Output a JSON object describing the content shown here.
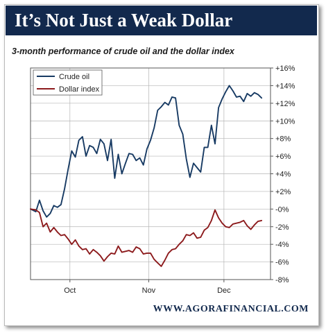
{
  "header": {
    "title": "It’s Not Just a Weak Dollar"
  },
  "subtitle": "3-month performance of crude oil and the dollar index",
  "footer": "WWW.AGORAFINANCIAL.COM",
  "colors": {
    "title_bg": "#12294d",
    "crude": "#173a63",
    "dollar": "#8c1a1c"
  },
  "chart_data": {
    "type": "line",
    "ylim": [
      -8,
      16
    ],
    "yticks": [
      16,
      14,
      12,
      10,
      8,
      6,
      4,
      2,
      0,
      -2,
      -4,
      -6,
      -8
    ],
    "ytick_labels": [
      "+16%",
      "+14%",
      "+12%",
      "+10%",
      "+8%",
      "+6%",
      "+4%",
      "+2%",
      "-0%",
      "-2%",
      "-4%",
      "-6%",
      "-8%"
    ],
    "xlim": [
      0,
      67
    ],
    "xticks": [
      {
        "x": 11,
        "label": "Oct"
      },
      {
        "x": 33,
        "label": "Nov"
      },
      {
        "x": 54,
        "label": "Dec"
      }
    ],
    "grid": true,
    "legend": "top-left",
    "series": [
      {
        "name": "Crude oil",
        "color": "#173a63",
        "values": [
          [
            0,
            0.0
          ],
          [
            1.5,
            -0.3
          ],
          [
            2.5,
            1.0
          ],
          [
            3.5,
            -0.2
          ],
          [
            4.5,
            -0.9
          ],
          [
            5.5,
            -0.5
          ],
          [
            6.5,
            0.4
          ],
          [
            7.5,
            0.2
          ],
          [
            8.5,
            0.5
          ],
          [
            9.5,
            2.3
          ],
          [
            10.5,
            4.5
          ],
          [
            11.5,
            6.6
          ],
          [
            12.5,
            5.9
          ],
          [
            13.5,
            7.8
          ],
          [
            14.5,
            8.2
          ],
          [
            15.5,
            6.0
          ],
          [
            16.5,
            7.2
          ],
          [
            17.5,
            7.0
          ],
          [
            18.5,
            6.3
          ],
          [
            19.5,
            7.9
          ],
          [
            20.5,
            7.4
          ],
          [
            21.5,
            5.5
          ],
          [
            22.5,
            7.9
          ],
          [
            23.5,
            3.5
          ],
          [
            24.5,
            6.2
          ],
          [
            25.5,
            4.0
          ],
          [
            26.5,
            5.2
          ],
          [
            27.5,
            6.3
          ],
          [
            28.5,
            6.2
          ],
          [
            29.5,
            5.5
          ],
          [
            30.5,
            5.8
          ],
          [
            31.5,
            5.0
          ],
          [
            32.5,
            6.8
          ],
          [
            33.5,
            7.8
          ],
          [
            34.5,
            9.2
          ],
          [
            35.5,
            11.2
          ],
          [
            36.5,
            11.6
          ],
          [
            37.5,
            12.1
          ],
          [
            38.5,
            11.8
          ],
          [
            39.5,
            12.7
          ],
          [
            40.5,
            12.6
          ],
          [
            41.5,
            9.5
          ],
          [
            42.5,
            8.5
          ],
          [
            43.5,
            5.7
          ],
          [
            44.5,
            3.6
          ],
          [
            45.5,
            5.2
          ],
          [
            46.5,
            4.7
          ],
          [
            47.5,
            4.2
          ],
          [
            48.5,
            7.0
          ],
          [
            49.5,
            7.0
          ],
          [
            50.5,
            9.5
          ],
          [
            51.5,
            7.4
          ],
          [
            52.5,
            11.5
          ],
          [
            53.5,
            12.5
          ],
          [
            54.5,
            13.3
          ],
          [
            55.5,
            14.0
          ],
          [
            56.5,
            13.4
          ],
          [
            57.5,
            12.7
          ],
          [
            58.5,
            12.8
          ],
          [
            59.5,
            12.2
          ],
          [
            60.5,
            13.1
          ],
          [
            61.5,
            12.8
          ],
          [
            62.5,
            13.2
          ],
          [
            63.5,
            13.0
          ],
          [
            64.5,
            12.6
          ]
        ]
      },
      {
        "name": "Dollar index",
        "color": "#8c1a1c",
        "values": [
          [
            0,
            0.0
          ],
          [
            1.5,
            -0.1
          ],
          [
            2.5,
            -0.4
          ],
          [
            3.5,
            -2.0
          ],
          [
            4.5,
            -1.6
          ],
          [
            5.5,
            -2.6
          ],
          [
            6.5,
            -2.1
          ],
          [
            7.5,
            -2.6
          ],
          [
            8.5,
            -3.0
          ],
          [
            9.5,
            -2.9
          ],
          [
            10.5,
            -3.4
          ],
          [
            11.5,
            -4.0
          ],
          [
            12.5,
            -3.5
          ],
          [
            13.5,
            -4.2
          ],
          [
            14.5,
            -4.6
          ],
          [
            15.5,
            -4.5
          ],
          [
            16.5,
            -5.1
          ],
          [
            17.5,
            -4.6
          ],
          [
            18.5,
            -4.9
          ],
          [
            19.5,
            -5.3
          ],
          [
            20.5,
            -5.9
          ],
          [
            21.5,
            -5.4
          ],
          [
            22.5,
            -5.0
          ],
          [
            23.5,
            -5.1
          ],
          [
            24.5,
            -4.2
          ],
          [
            25.5,
            -4.9
          ],
          [
            26.5,
            -4.8
          ],
          [
            27.5,
            -4.7
          ],
          [
            28.5,
            -4.9
          ],
          [
            29.5,
            -4.3
          ],
          [
            30.5,
            -4.5
          ],
          [
            31.5,
            -5.1
          ],
          [
            32.5,
            -5.0
          ],
          [
            33.5,
            -5.0
          ],
          [
            34.5,
            -5.7
          ],
          [
            35.5,
            -6.1
          ],
          [
            36.5,
            -6.5
          ],
          [
            37.5,
            -5.8
          ],
          [
            38.5,
            -5.0
          ],
          [
            39.5,
            -4.6
          ],
          [
            40.5,
            -4.5
          ],
          [
            41.5,
            -4.0
          ],
          [
            42.5,
            -3.6
          ],
          [
            43.5,
            -2.9
          ],
          [
            44.5,
            -3.0
          ],
          [
            45.5,
            -2.7
          ],
          [
            46.5,
            -3.3
          ],
          [
            47.5,
            -3.2
          ],
          [
            48.5,
            -2.4
          ],
          [
            49.5,
            -2.1
          ],
          [
            50.5,
            -1.3
          ],
          [
            51.5,
            -0.1
          ],
          [
            52.5,
            -1.0
          ],
          [
            53.5,
            -1.6
          ],
          [
            54.5,
            -2.0
          ],
          [
            55.5,
            -2.1
          ],
          [
            56.5,
            -1.7
          ],
          [
            57.5,
            -1.6
          ],
          [
            58.5,
            -1.5
          ],
          [
            59.5,
            -1.3
          ],
          [
            60.5,
            -1.9
          ],
          [
            61.5,
            -2.3
          ],
          [
            62.5,
            -1.8
          ],
          [
            63.5,
            -1.4
          ],
          [
            64.5,
            -1.3
          ]
        ]
      }
    ]
  }
}
